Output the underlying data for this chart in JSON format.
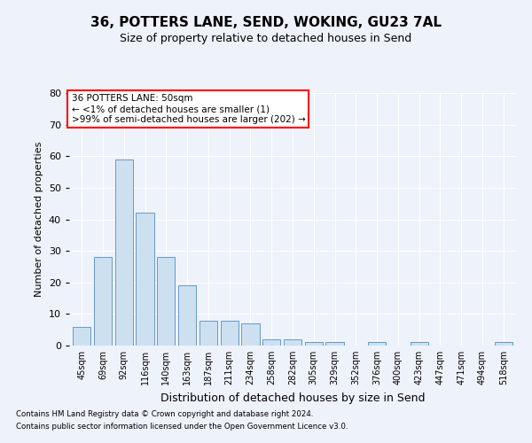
{
  "title1": "36, POTTERS LANE, SEND, WOKING, GU23 7AL",
  "title2": "Size of property relative to detached houses in Send",
  "xlabel": "Distribution of detached houses by size in Send",
  "ylabel": "Number of detached properties",
  "categories": [
    "45sqm",
    "69sqm",
    "92sqm",
    "116sqm",
    "140sqm",
    "163sqm",
    "187sqm",
    "211sqm",
    "234sqm",
    "258sqm",
    "282sqm",
    "305sqm",
    "329sqm",
    "352sqm",
    "376sqm",
    "400sqm",
    "423sqm",
    "447sqm",
    "471sqm",
    "494sqm",
    "518sqm"
  ],
  "values": [
    6,
    28,
    59,
    42,
    28,
    19,
    8,
    8,
    7,
    2,
    2,
    1,
    1,
    0,
    1,
    0,
    1,
    0,
    0,
    0,
    1
  ],
  "bar_color": "#cce0f0",
  "bar_edge_color": "#6699cc",
  "ylim": [
    0,
    80
  ],
  "yticks": [
    0,
    10,
    20,
    30,
    40,
    50,
    60,
    70,
    80
  ],
  "annotation_line1": "36 POTTERS LANE: 50sqm",
  "annotation_line2": "← <1% of detached houses are smaller (1)",
  "annotation_line3": ">99% of semi-detached houses are larger (202) →",
  "footer1": "Contains HM Land Registry data © Crown copyright and database right 2024.",
  "footer2": "Contains public sector information licensed under the Open Government Licence v3.0.",
  "bg_color": "#eef2fa",
  "plot_bg_color": "#eef2fa",
  "grid_color": "#ffffff",
  "title1_fontsize": 11,
  "title2_fontsize": 9,
  "ylabel_fontsize": 8,
  "xlabel_fontsize": 9
}
